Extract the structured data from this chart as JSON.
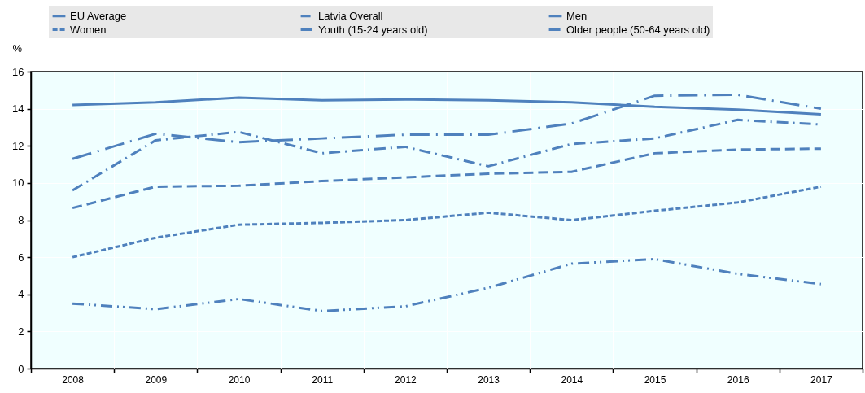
{
  "chart_data": {
    "type": "line",
    "ylabel": "%",
    "categories": [
      "2008",
      "2009",
      "2010",
      "2011",
      "2012",
      "2013",
      "2014",
      "2015",
      "2016",
      "2017"
    ],
    "ylim": [
      0,
      16
    ],
    "yticks": [
      0,
      2,
      4,
      6,
      8,
      10,
      12,
      14,
      16
    ],
    "grid": true,
    "legend": "top",
    "series": [
      {
        "name": "EU Average",
        "color": "#4f81bd",
        "line_style": "solid",
        "values": [
          14.2,
          14.35,
          14.6,
          14.45,
          14.5,
          14.45,
          14.35,
          14.1,
          13.95,
          13.7
        ]
      },
      {
        "name": "Latvia Overall",
        "color": "#4f81bd",
        "line_style": "dashed",
        "values": [
          8.65,
          9.8,
          9.85,
          10.1,
          10.3,
          10.5,
          10.6,
          11.6,
          11.8,
          11.85
        ]
      },
      {
        "name": "Men",
        "color": "#4f81bd",
        "line_style": "longdashdot",
        "values": [
          11.3,
          12.65,
          12.2,
          12.4,
          12.6,
          12.6,
          13.2,
          14.7,
          14.75,
          14.0
        ]
      },
      {
        "name": "Women",
        "color": "#4f81bd",
        "line_style": "dotted",
        "values": [
          6.0,
          7.05,
          7.75,
          7.85,
          8.0,
          8.4,
          8.0,
          8.5,
          8.95,
          9.8
        ]
      },
      {
        "name": "Youth (15-24 years old)",
        "color": "#4f81bd",
        "line_style": "dashdotdot",
        "values": [
          3.5,
          3.2,
          3.75,
          3.1,
          3.35,
          4.35,
          5.65,
          5.9,
          5.1,
          4.55
        ]
      },
      {
        "name": "Older people (50-64 years old)",
        "color": "#4f81bd",
        "line_style": "dashdot",
        "values": [
          9.6,
          12.3,
          12.75,
          11.6,
          11.95,
          10.9,
          12.1,
          12.4,
          13.4,
          13.15
        ]
      }
    ]
  }
}
